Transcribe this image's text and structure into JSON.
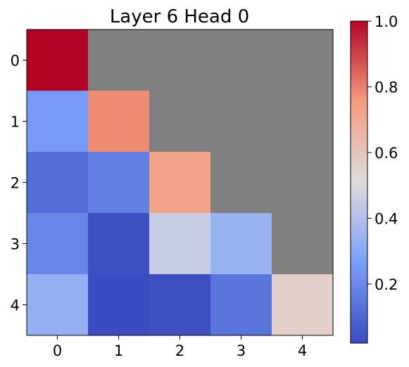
{
  "chart_data": {
    "type": "heatmap",
    "title": "Layer 6 Head 0",
    "xlabel": "",
    "ylabel": "",
    "x_ticks": [
      "0",
      "1",
      "2",
      "3",
      "4"
    ],
    "y_ticks": [
      "0",
      "1",
      "2",
      "3",
      "4"
    ],
    "colormap": "coolwarm",
    "masked_color": "#808080",
    "values": [
      [
        1.0,
        null,
        null,
        null,
        null
      ],
      [
        0.25,
        0.78,
        null,
        null,
        null
      ],
      [
        0.12,
        0.17,
        0.73,
        null,
        null
      ],
      [
        0.19,
        0.03,
        0.45,
        0.34,
        null
      ],
      [
        0.33,
        0.02,
        0.03,
        0.14,
        0.56
      ]
    ],
    "colorbar": {
      "vmin": 0.02,
      "vmax": 1.0,
      "ticks": [
        0.2,
        0.4,
        0.6,
        0.8,
        1.0
      ],
      "tick_labels": [
        "0.2",
        "0.4",
        "0.6",
        "0.8",
        "1.0"
      ]
    }
  }
}
